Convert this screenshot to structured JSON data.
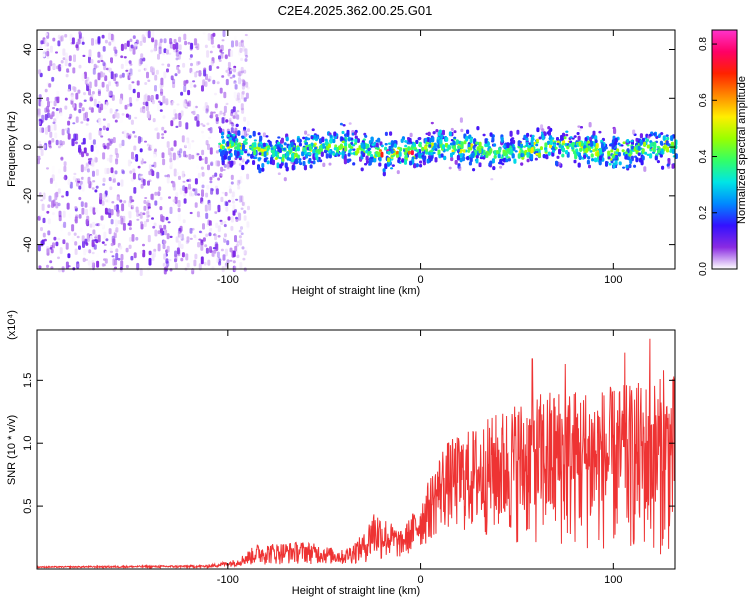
{
  "title": "C2E4.2025.362.00.25.G01",
  "chart_data": [
    {
      "type": "heatmap",
      "xlabel": "Height of straight line (km)",
      "ylabel": "Frequency (Hz)",
      "xlim": [
        -199,
        132
      ],
      "ylim": [
        -50,
        48
      ],
      "x_ticks": [
        -100,
        0,
        100
      ],
      "y_ticks": [
        -40,
        -20,
        0,
        20,
        40
      ],
      "colorbar": {
        "label": "Normalized spectral amplitude",
        "range": [
          0,
          0.85
        ],
        "ticks": [
          0.0,
          0.2,
          0.4,
          0.6,
          0.8
        ],
        "colors": [
          "#ffffff",
          "#8a2be2",
          "#3311ff",
          "#0088ff",
          "#00e5e5",
          "#33ff66",
          "#99ff00",
          "#ffee00",
          "#ff8800",
          "#ff2200",
          "#ff0066",
          "#ff33cc"
        ]
      },
      "features": [
        {
          "region": "noise",
          "x_range": [
            -199,
            -90
          ],
          "y_range": [
            -50,
            48
          ],
          "amplitude_range": [
            0.0,
            0.12
          ]
        },
        {
          "region": "signal_band",
          "x_range": [
            -105,
            132
          ],
          "center_frequency": 0,
          "half_width": [
            6,
            15
          ],
          "peak_amplitude": 0.85,
          "peak_near_x": [
            -22,
            -5
          ]
        }
      ]
    },
    {
      "type": "line",
      "xlabel": "Height of straight line (km)",
      "ylabel": "SNR (10 * v/v)",
      "y_scale_label": "(x10⁴)",
      "xlim": [
        -199,
        132
      ],
      "ylim": [
        0,
        1.9
      ],
      "x_ticks": [
        -100,
        0,
        100
      ],
      "y_ticks": [
        0.5,
        1.0,
        1.5
      ],
      "y_tick_labels": [
        "0.5",
        "1.0",
        "1.5"
      ],
      "color": "#ee3333",
      "envelope": [
        {
          "x": -199,
          "low": 0.01,
          "high": 0.02
        },
        {
          "x": -110,
          "low": 0.01,
          "high": 0.03
        },
        {
          "x": -95,
          "low": 0.02,
          "high": 0.08
        },
        {
          "x": -85,
          "low": 0.03,
          "high": 0.2
        },
        {
          "x": -60,
          "low": 0.04,
          "high": 0.22
        },
        {
          "x": -40,
          "low": 0.03,
          "high": 0.15
        },
        {
          "x": -28,
          "low": 0.05,
          "high": 0.3
        },
        {
          "x": -25,
          "low": 0.05,
          "high": 0.5
        },
        {
          "x": -10,
          "low": 0.08,
          "high": 0.3
        },
        {
          "x": 0,
          "low": 0.15,
          "high": 0.55
        },
        {
          "x": 12,
          "low": 0.3,
          "high": 1.0
        },
        {
          "x": 30,
          "low": 0.25,
          "high": 1.15
        },
        {
          "x": 50,
          "low": 0.2,
          "high": 1.35
        },
        {
          "x": 70,
          "low": 0.15,
          "high": 1.45
        },
        {
          "x": 100,
          "low": 0.12,
          "high": 1.45
        },
        {
          "x": 132,
          "low": 0.1,
          "high": 1.55
        }
      ],
      "peaks": [
        {
          "x": 58,
          "y": 1.67
        },
        {
          "x": 75,
          "y": 1.63
        },
        {
          "x": 106,
          "y": 1.72
        },
        {
          "x": 119,
          "y": 1.83
        },
        {
          "x": 126,
          "y": 1.58
        }
      ]
    }
  ]
}
